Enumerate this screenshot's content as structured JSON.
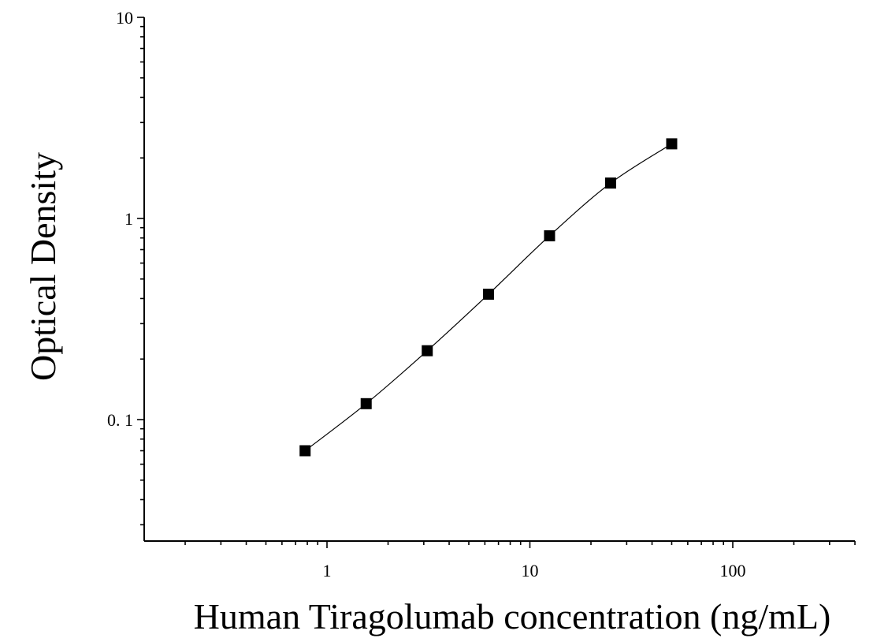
{
  "chart_data": {
    "type": "scatter",
    "title": "",
    "xlabel": "Human Tiragolumab concentration (ng/mL)",
    "ylabel": "Optical Density",
    "xscale": "log",
    "yscale": "log",
    "xlim": [
      0.1,
      400
    ],
    "ylim": [
      0.03,
      10
    ],
    "x_ticks": [
      1,
      10,
      100
    ],
    "x_tick_labels": [
      "1",
      "10",
      "100"
    ],
    "y_ticks": [
      0.1,
      1,
      10
    ],
    "y_tick_labels": [
      "0. 1",
      "1",
      "10"
    ],
    "grid": false,
    "legend": "none",
    "series": [
      {
        "x": [
          0.78,
          1.56,
          3.12,
          6.25,
          12.5,
          25,
          50
        ],
        "y": [
          0.07,
          0.12,
          0.22,
          0.42,
          0.82,
          1.5,
          2.35
        ],
        "marker": "square",
        "fit_curve": true
      }
    ],
    "colors": {
      "marker": "#000000",
      "axis": "#000000"
    }
  }
}
